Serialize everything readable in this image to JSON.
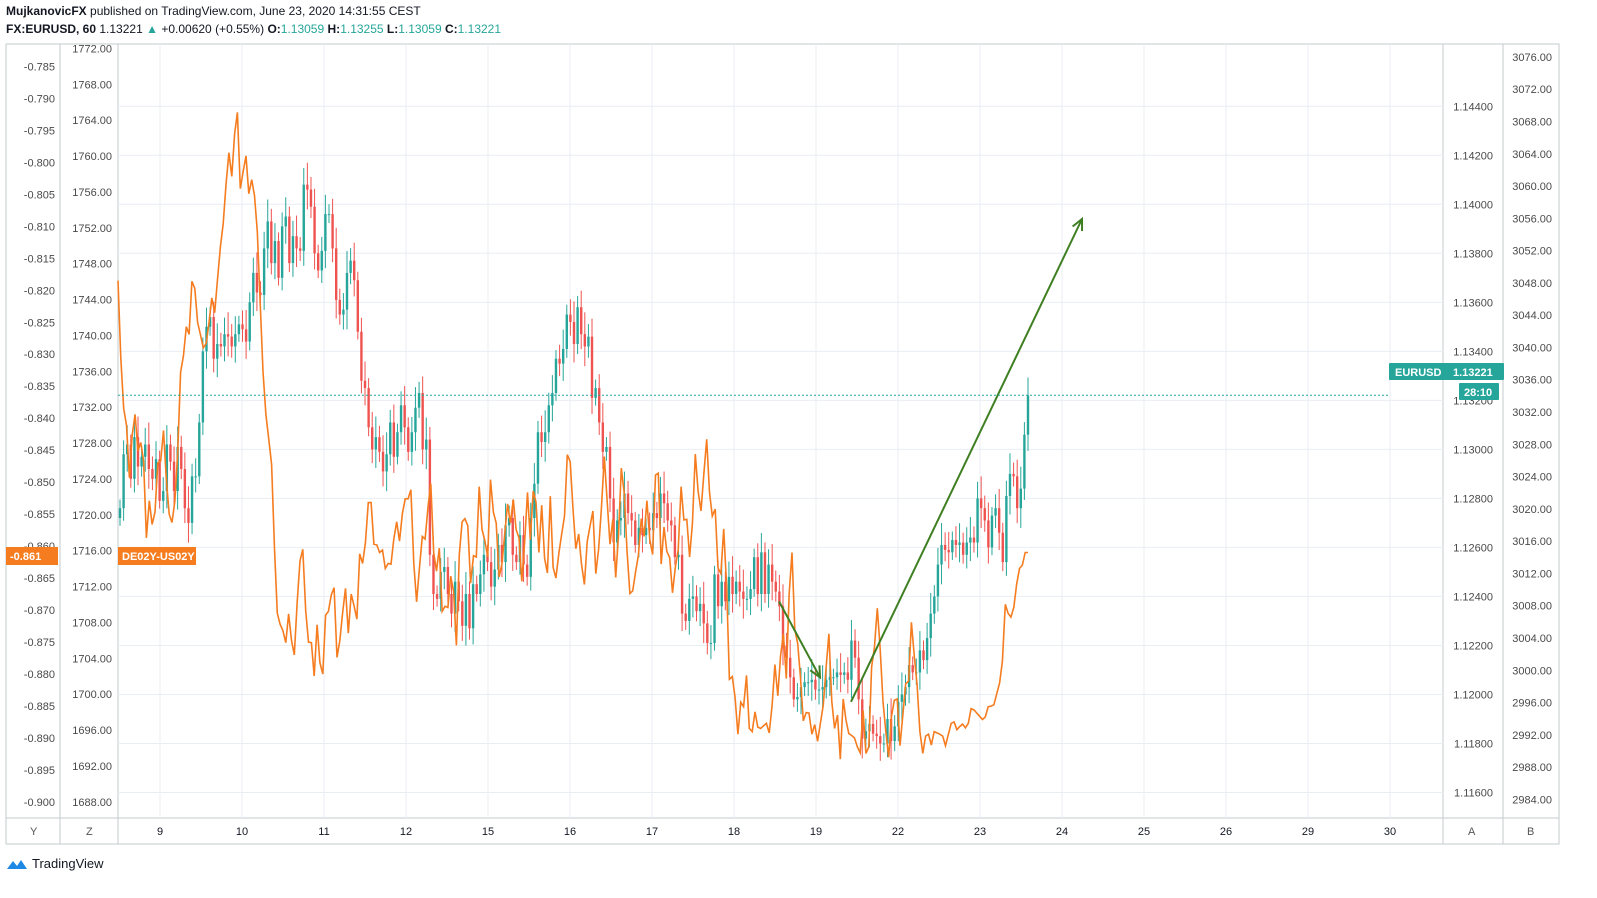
{
  "header": {
    "author": "MujkanovicFX",
    "published": "published on TradingView.com, June 23, 2020 14:31:55 CEST",
    "symbol": "FX:EURUSD, 60",
    "last": "1.13221",
    "change_arrow": "▲",
    "change": "+0.00620 (+0.55%)",
    "o_label": "O:",
    "o_value": "1.13059",
    "h_label": "H:",
    "h_value": "1.13255",
    "l_label": "L:",
    "l_value": "1.13059",
    "c_label": "C:",
    "c_value": "1.13221"
  },
  "colors": {
    "up": "#26a69a",
    "down": "#ef5350",
    "spread_line": "#f57c1f",
    "arrow": "#3f7f22",
    "grid": "#e9eef3",
    "price_tag": "#26a69a",
    "spread_tag": "#f57c1f"
  },
  "footer": {
    "brand": "TradingView",
    "logo_icon": "tradingview-logo-icon"
  },
  "corners": {
    "y_label": "Y",
    "z_label": "Z",
    "a_label": "A",
    "b_label": "B"
  },
  "chart_data": {
    "type": "line",
    "x_ticks": [
      "9",
      "10",
      "11",
      "12",
      "15",
      "16",
      "17",
      "18",
      "19",
      "22",
      "23",
      "24",
      "25",
      "26",
      "29",
      "30"
    ],
    "axes": {
      "left_outer": {
        "ticks": [
          "-0.785",
          "-0.790",
          "-0.795",
          "-0.800",
          "-0.805",
          "-0.810",
          "-0.815",
          "-0.820",
          "-0.825",
          "-0.830",
          "-0.835",
          "-0.840",
          "-0.845",
          "-0.850",
          "-0.855",
          "-0.860",
          "-0.865",
          "-0.870",
          "-0.875",
          "-0.880",
          "-0.885",
          "-0.890",
          "-0.895",
          "-0.900"
        ],
        "range": [
          -0.9025,
          -0.7815
        ]
      },
      "left_inner": {
        "ticks": [
          "1772.00",
          "1768.00",
          "1764.00",
          "1760.00",
          "1756.00",
          "1752.00",
          "1748.00",
          "1744.00",
          "1740.00",
          "1736.00",
          "1732.00",
          "1728.00",
          "1724.00",
          "1720.00",
          "1716.00",
          "1712.00",
          "1708.00",
          "1704.00",
          "1700.00",
          "1696.00",
          "1692.00",
          "1688.00"
        ],
        "range": [
          1686.2,
          1772.5
        ]
      },
      "right_inner": {
        "ticks": [
          "1.14400",
          "1.14200",
          "1.14000",
          "1.13800",
          "1.13600",
          "1.13400",
          "1.13200",
          "1.13000",
          "1.12800",
          "1.12600",
          "1.12400",
          "1.12200",
          "1.12000",
          "1.11800",
          "1.11600"
        ],
        "range": [
          1.11496,
          1.14654
        ]
      },
      "right_outer": {
        "ticks": [
          "3076.00",
          "3072.00",
          "3068.00",
          "3064.00",
          "3060.00",
          "3056.00",
          "3052.00",
          "3048.00",
          "3044.00",
          "3040.00",
          "3036.00",
          "3032.00",
          "3028.00",
          "3024.00",
          "3020.00",
          "3016.00",
          "3012.00",
          "3008.00",
          "3004.00",
          "3000.00",
          "2996.00",
          "2992.00",
          "2988.00",
          "2984.00"
        ],
        "range": [
          2981.7,
          3077.6
        ]
      }
    },
    "series": [
      {
        "name": "FX:EURUSD",
        "kind": "candlestick",
        "axis": "right_inner",
        "closes": [
          1.1276,
          1.1298,
          1.1302,
          1.1288,
          1.1305,
          1.1293,
          1.1297,
          1.1302,
          1.1292,
          1.1288,
          1.1296,
          1.1279,
          1.1283,
          1.1302,
          1.1295,
          1.1283,
          1.1301,
          1.1292,
          1.1276,
          1.127,
          1.1289,
          1.1289,
          1.1311,
          1.134,
          1.135,
          1.1354,
          1.1337,
          1.1343,
          1.1342,
          1.1347,
          1.1346,
          1.1342,
          1.1347,
          1.1351,
          1.1349,
          1.1344,
          1.136,
          1.1372,
          1.1364,
          1.1363,
          1.1382,
          1.1393,
          1.1376,
          1.1385,
          1.137,
          1.1391,
          1.1395,
          1.1376,
          1.1387,
          1.1382,
          1.1381,
          1.1408,
          1.1406,
          1.1399,
          1.138,
          1.1373,
          1.1381,
          1.1396,
          1.1396,
          1.1382,
          1.1361,
          1.1355,
          1.1357,
          1.1372,
          1.1377,
          1.1369,
          1.1348,
          1.1328,
          1.1325,
          1.1309,
          1.13,
          1.1305,
          1.1299,
          1.1291,
          1.1298,
          1.1311,
          1.1297,
          1.1307,
          1.1318,
          1.1309,
          1.1299,
          1.1307,
          1.1317,
          1.1323,
          1.13,
          1.1304,
          1.1257,
          1.1241,
          1.1239,
          1.125,
          1.1252,
          1.1241,
          1.1233,
          1.1246,
          1.1238,
          1.1228,
          1.1241,
          1.1227,
          1.1245,
          1.1241,
          1.1249,
          1.1257,
          1.1254,
          1.1244,
          1.1251,
          1.1261,
          1.1254,
          1.1269,
          1.1272,
          1.1257,
          1.1254,
          1.1265,
          1.1253,
          1.1248,
          1.1272,
          1.1286,
          1.1307,
          1.1303,
          1.1307,
          1.1318,
          1.1323,
          1.1337,
          1.1335,
          1.1341,
          1.1355,
          1.1352,
          1.1343,
          1.1358,
          1.1347,
          1.1342,
          1.1346,
          1.1321,
          1.1325,
          1.1311,
          1.1299,
          1.1301,
          1.128,
          1.1262,
          1.1271,
          1.1272,
          1.1282,
          1.1274,
          1.1271,
          1.1261,
          1.1268,
          1.1265,
          1.1268,
          1.1267,
          1.1274,
          1.1272,
          1.1282,
          1.1278,
          1.1271,
          1.1269,
          1.1256,
          1.1257,
          1.1233,
          1.123,
          1.1239,
          1.124,
          1.1234,
          1.1237,
          1.1229,
          1.1221,
          1.1221,
          1.1249,
          1.1236,
          1.1246,
          1.1238,
          1.1248,
          1.1241,
          1.1246,
          1.1242,
          1.1239,
          1.1239,
          1.1243,
          1.1256,
          1.1241,
          1.1258,
          1.1241,
          1.1253,
          1.1246,
          1.1242,
          1.1236,
          1.122,
          1.1215,
          1.1207,
          1.1198,
          1.1199,
          1.1203,
          1.1205,
          1.1205,
          1.1206,
          1.1202,
          1.1202,
          1.1203,
          1.1206,
          1.1207,
          1.1207,
          1.1209,
          1.1208,
          1.1209,
          1.1206,
          1.1222,
          1.1215,
          1.1198,
          1.1182,
          1.1185,
          1.1188,
          1.1184,
          1.1183,
          1.118,
          1.118,
          1.119,
          1.1181,
          1.1187,
          1.1197,
          1.12,
          1.1203,
          1.1212,
          1.1209,
          1.1209,
          1.1218,
          1.1214,
          1.1223,
          1.1233,
          1.124,
          1.1253,
          1.1261,
          1.1259,
          1.1258,
          1.1263,
          1.1261,
          1.1262,
          1.1257,
          1.1262,
          1.1264,
          1.1262,
          1.128,
          1.1276,
          1.1271,
          1.126,
          1.1273,
          1.1276,
          1.1266,
          1.1254,
          1.1281,
          1.129,
          1.1289,
          1.1276,
          1.1284,
          1.1306,
          1.1322
        ]
      },
      {
        "name": "DE02Y-US02Y",
        "kind": "line",
        "axis": "left_outer",
        "values": [
          -0.8185,
          -0.8306,
          -0.8385,
          -0.8411,
          -0.8493,
          -0.8426,
          -0.8394,
          -0.8451,
          -0.8438,
          -0.8467,
          -0.8587,
          -0.8529,
          -0.8566,
          -0.8547,
          -0.847,
          -0.8467,
          -0.8419,
          -0.8495,
          -0.855,
          -0.8563,
          -0.8529,
          -0.8454,
          -0.8328,
          -0.8303,
          -0.8257,
          -0.8269,
          -0.8186,
          -0.8197,
          -0.825,
          -0.827,
          -0.829,
          -0.8283,
          -0.8251,
          -0.8212,
          -0.8235,
          -0.8183,
          -0.8132,
          -0.8096,
          -0.8033,
          -0.7985,
          -0.8022,
          -0.7956,
          -0.7922,
          -0.8041,
          -0.8015,
          -0.799,
          -0.8049,
          -0.8027,
          -0.8052,
          -0.8108,
          -0.822,
          -0.8327,
          -0.8394,
          -0.8432,
          -0.8472,
          -0.86,
          -0.8705,
          -0.8722,
          -0.8732,
          -0.8751,
          -0.8706,
          -0.8747,
          -0.877,
          -0.8687,
          -0.8623,
          -0.8605,
          -0.8701,
          -0.875,
          -0.8751,
          -0.8803,
          -0.8723,
          -0.8782,
          -0.88,
          -0.8708,
          -0.8702,
          -0.8676,
          -0.8665,
          -0.8774,
          -0.8748,
          -0.8703,
          -0.8666,
          -0.8736,
          -0.8675,
          -0.8693,
          -0.8714,
          -0.8612,
          -0.8627,
          -0.8595,
          -0.8532,
          -0.8532,
          -0.8597,
          -0.8598,
          -0.861,
          -0.8606,
          -0.8635,
          -0.8627,
          -0.8628,
          -0.8589,
          -0.8562,
          -0.8592,
          -0.8549,
          -0.8526,
          -0.8526,
          -0.8512,
          -0.8627,
          -0.8687,
          -0.8635,
          -0.8585,
          -0.8589,
          -0.8539,
          -0.8502,
          -0.861,
          -0.8639,
          -0.8603,
          -0.8702,
          -0.8694,
          -0.8696,
          -0.8647,
          -0.8671,
          -0.8755,
          -0.8613,
          -0.8562,
          -0.8557,
          -0.8568,
          -0.8658,
          -0.8615,
          -0.8617,
          -0.8507,
          -0.8574,
          -0.8591,
          -0.8617,
          -0.8496,
          -0.8547,
          -0.8564,
          -0.8648,
          -0.8628,
          -0.858,
          -0.8534,
          -0.8564,
          -0.8527,
          -0.8574,
          -0.8587,
          -0.8655,
          -0.8592,
          -0.8516,
          -0.859,
          -0.8514,
          -0.8531,
          -0.861,
          -0.8536,
          -0.8619,
          -0.8642,
          -0.8522,
          -0.8633,
          -0.865,
          -0.8612,
          -0.8582,
          -0.8553,
          -0.8457,
          -0.8468,
          -0.8542,
          -0.8604,
          -0.8581,
          -0.8628,
          -0.866,
          -0.8593,
          -0.8568,
          -0.8545,
          -0.8643,
          -0.8605,
          -0.8541,
          -0.846,
          -0.8528,
          -0.8597,
          -0.8558,
          -0.8649,
          -0.8583,
          -0.8478,
          -0.8517,
          -0.8607,
          -0.8674,
          -0.867,
          -0.864,
          -0.8614,
          -0.8557,
          -0.8585,
          -0.8529,
          -0.859,
          -0.8613,
          -0.8489,
          -0.8486,
          -0.8628,
          -0.857,
          -0.8608,
          -0.8618,
          -0.8673,
          -0.8632,
          -0.8606,
          -0.8507,
          -0.8559,
          -0.8558,
          -0.8617,
          -0.8565,
          -0.8456,
          -0.8514,
          -0.8545,
          -0.8488,
          -0.8433,
          -0.8516,
          -0.8553,
          -0.8542,
          -0.8634,
          -0.8643,
          -0.8573,
          -0.8662,
          -0.8808,
          -0.8804,
          -0.8837,
          -0.8894,
          -0.8844,
          -0.8851,
          -0.8802,
          -0.8885,
          -0.889,
          -0.8859,
          -0.8883,
          -0.8885,
          -0.8881,
          -0.8877,
          -0.8892,
          -0.8849,
          -0.8785,
          -0.8834,
          -0.8771,
          -0.8737,
          -0.8807,
          -0.8676,
          -0.861,
          -0.8731,
          -0.8752,
          -0.8806,
          -0.8873,
          -0.886,
          -0.8861,
          -0.8894,
          -0.8879,
          -0.8905,
          -0.8877,
          -0.8848,
          -0.879,
          -0.8737,
          -0.8843,
          -0.8885,
          -0.8864,
          -0.8933,
          -0.8839,
          -0.8872,
          -0.8893,
          -0.8896,
          -0.89,
          -0.8914,
          -0.8923,
          -0.8857,
          -0.8924,
          -0.8914,
          -0.8789,
          -0.8759,
          -0.8697,
          -0.8759,
          -0.8843,
          -0.889,
          -0.893,
          -0.8866,
          -0.8841,
          -0.8839,
          -0.8912,
          -0.8863,
          -0.8815,
          -0.8811,
          -0.8719,
          -0.8772,
          -0.8817,
          -0.889,
          -0.8924,
          -0.8897,
          -0.8894,
          -0.8911,
          -0.889,
          -0.8892,
          -0.8894,
          -0.8897,
          -0.8912,
          -0.8894,
          -0.8877,
          -0.8875,
          -0.8887,
          -0.8882,
          -0.8878,
          -0.8884,
          -0.8877,
          -0.8854,
          -0.8856,
          -0.8861,
          -0.8866,
          -0.8871,
          -0.8867,
          -0.8851,
          -0.885,
          -0.8848,
          -0.8831,
          -0.8814,
          -0.878,
          -0.8691,
          -0.8705,
          -0.8711,
          -0.8696,
          -0.866,
          -0.8635,
          -0.863,
          -0.861,
          -0.861
        ]
      }
    ],
    "annotations": [
      {
        "type": "trend-arrow",
        "from": {
          "x_index": 0,
          "y": 1.1238
        },
        "to": {
          "x_index": 1,
          "y": 1.1207
        }
      },
      {
        "type": "trend-arrow",
        "from": {
          "x_index": 1,
          "y": 1.1197
        },
        "to": {
          "x_index": 2,
          "y": 1.1394
        }
      }
    ],
    "price_tag": {
      "label": "EURUSD",
      "value": "1.13221",
      "timer": "28:10",
      "y": 1.13221
    },
    "spread_tag": {
      "label": "DE02Y-US02Y",
      "value": "-0.861",
      "y": -0.861
    },
    "grid": true
  }
}
